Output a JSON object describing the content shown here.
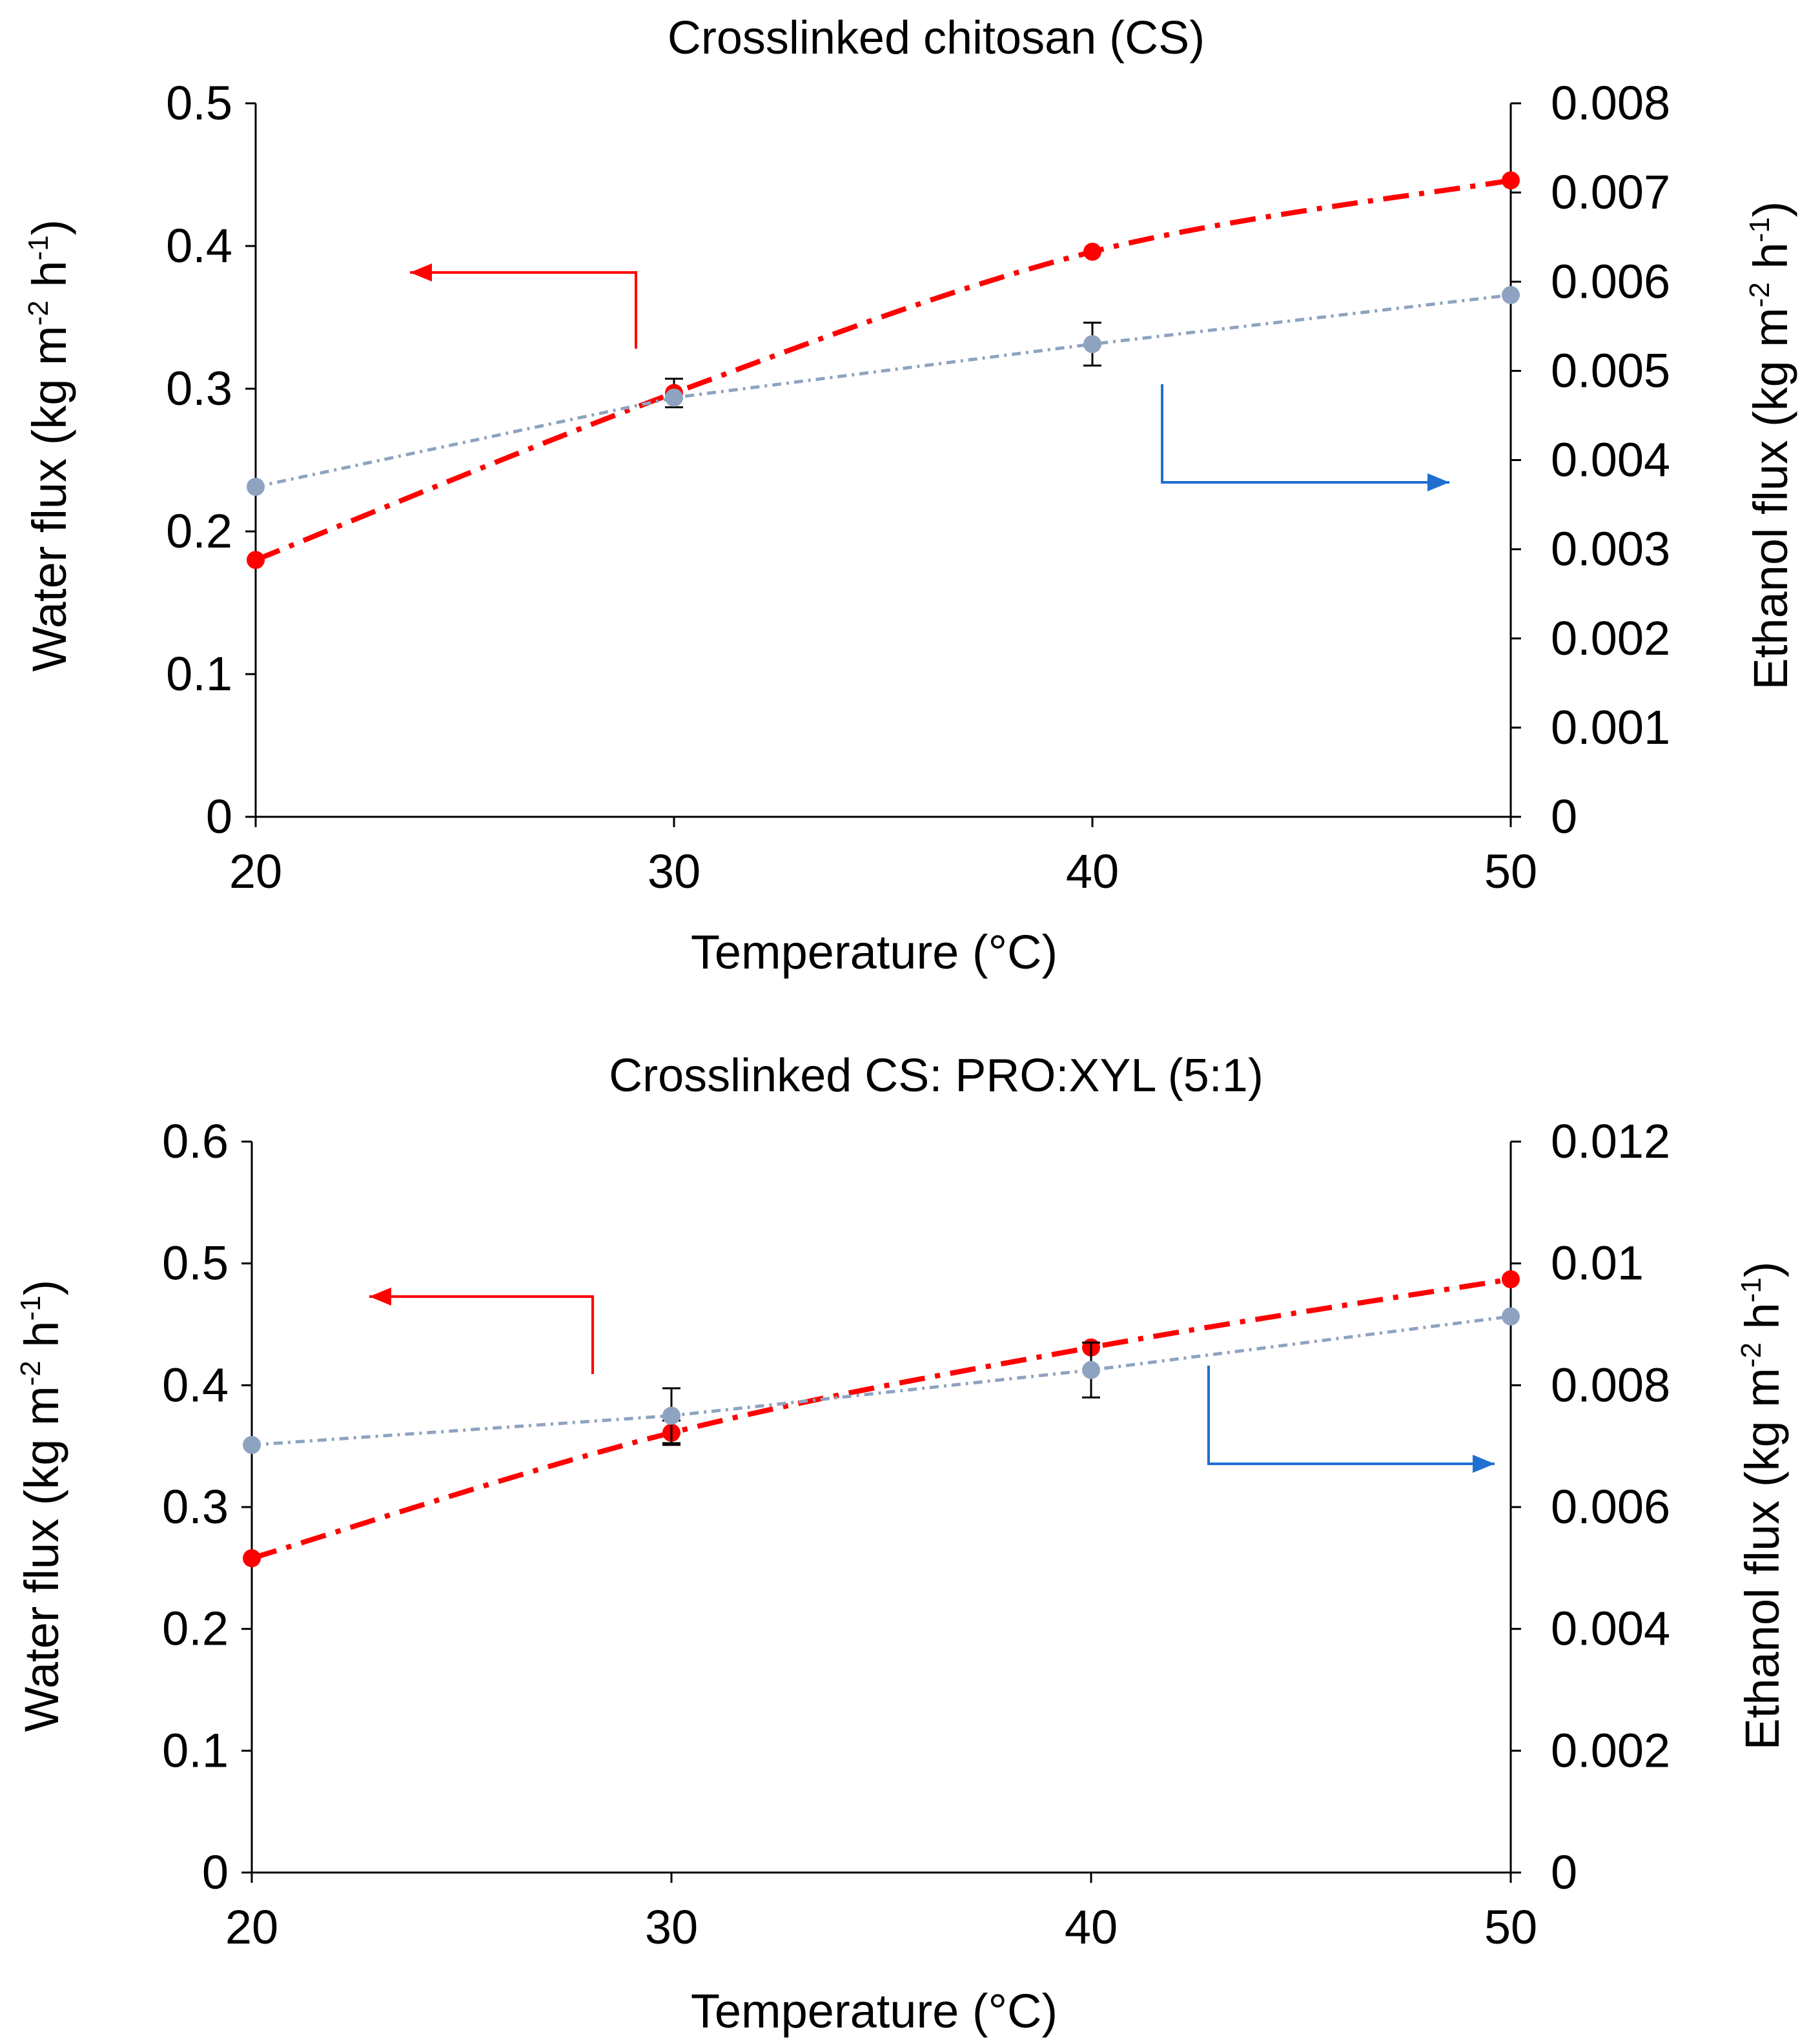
{
  "chart_data": [
    {
      "type": "line",
      "title": "Crosslinked chitosan (CS)",
      "xlabel": "Temperature (°C)",
      "ylabel": "Water  flux (kg m",
      "ylabel_sup1": "-2",
      "ylabel_mid": " h",
      "ylabel_sup2": "-1",
      "ylabel_end": ")",
      "y2label": "Ethanol flux (kg m",
      "y2label_sup1": "-2",
      "y2label_mid": " h",
      "y2label_sup2": "-1",
      "y2label_end": ")",
      "xlim": [
        20,
        50
      ],
      "ylim": [
        0,
        0.5
      ],
      "y2lim": [
        0,
        0.008
      ],
      "x_ticks": [
        "20",
        "30",
        "40",
        "50"
      ],
      "y_ticks": [
        "0",
        "0.1",
        "0.2",
        "0.3",
        "0.4",
        "0.5"
      ],
      "y2_ticks": [
        "0",
        "0.001",
        "0.002",
        "0.003",
        "0.004",
        "0.005",
        "0.006",
        "0.007",
        "0.008"
      ],
      "grid": false,
      "series": [
        {
          "axis": "left",
          "color": "#ff0000",
          "line": "dash-dot",
          "x": [
            20,
            30,
            40,
            50
          ],
          "y": [
            0.18,
            0.297,
            0.396,
            0.446
          ],
          "err": [
            0,
            0.01,
            0,
            0
          ]
        },
        {
          "axis": "right",
          "color": "#8ea3c0",
          "line": "dash-dot",
          "x": [
            20,
            30,
            40,
            50
          ],
          "y": [
            0.0037,
            0.0047,
            0.0053,
            0.00585
          ],
          "err": [
            0,
            0,
            0.00024,
            0
          ]
        }
      ],
      "annotations": [
        {
          "type": "arrow",
          "color": "#ff0000",
          "direction": "left",
          "target_axis": "left"
        },
        {
          "type": "arrow",
          "color": "#1f6fd1",
          "direction": "right",
          "target_axis": "right"
        }
      ]
    },
    {
      "type": "line",
      "title": "Crosslinked CS: PRO:XYL (5:1)",
      "xlabel": "Temperature (°C)",
      "ylabel": "Water flux  (kg m",
      "ylabel_sup1": "-2",
      "ylabel_mid": " h",
      "ylabel_sup2": "-1",
      "ylabel_end": ")",
      "y2label": "Ethanol flux (kg m",
      "y2label_sup1": "-2",
      "y2label_mid": " h",
      "y2label_sup2": "-1",
      "y2label_end": ")",
      "xlim": [
        20,
        50
      ],
      "ylim": [
        0,
        0.6
      ],
      "y2lim": [
        0,
        0.012
      ],
      "x_ticks": [
        "20",
        "30",
        "40",
        "50"
      ],
      "y_ticks": [
        "0",
        "0.1",
        "0.2",
        "0.3",
        "0.4",
        "0.5",
        "0.6"
      ],
      "y2_ticks": [
        "0",
        "0.002",
        "0.004",
        "0.006",
        "0.008",
        "0.01",
        "0.012"
      ],
      "grid": false,
      "series": [
        {
          "axis": "left",
          "color": "#ff0000",
          "line": "dash-dot",
          "x": [
            20,
            30,
            40,
            50
          ],
          "y": [
            0.258,
            0.361,
            0.431,
            0.487
          ],
          "err": [
            0,
            0.01,
            0,
            0
          ]
        },
        {
          "axis": "right",
          "color": "#8ea3c0",
          "line": "dash-dot",
          "x": [
            20,
            30,
            40,
            50
          ],
          "y": [
            0.00702,
            0.0075,
            0.00825,
            0.00913
          ],
          "err": [
            0,
            0.00045,
            0.00045,
            0
          ]
        }
      ],
      "annotations": [
        {
          "type": "arrow",
          "color": "#ff0000",
          "direction": "left",
          "target_axis": "left"
        },
        {
          "type": "arrow",
          "color": "#1f6fd1",
          "direction": "right",
          "target_axis": "right"
        }
      ]
    }
  ]
}
